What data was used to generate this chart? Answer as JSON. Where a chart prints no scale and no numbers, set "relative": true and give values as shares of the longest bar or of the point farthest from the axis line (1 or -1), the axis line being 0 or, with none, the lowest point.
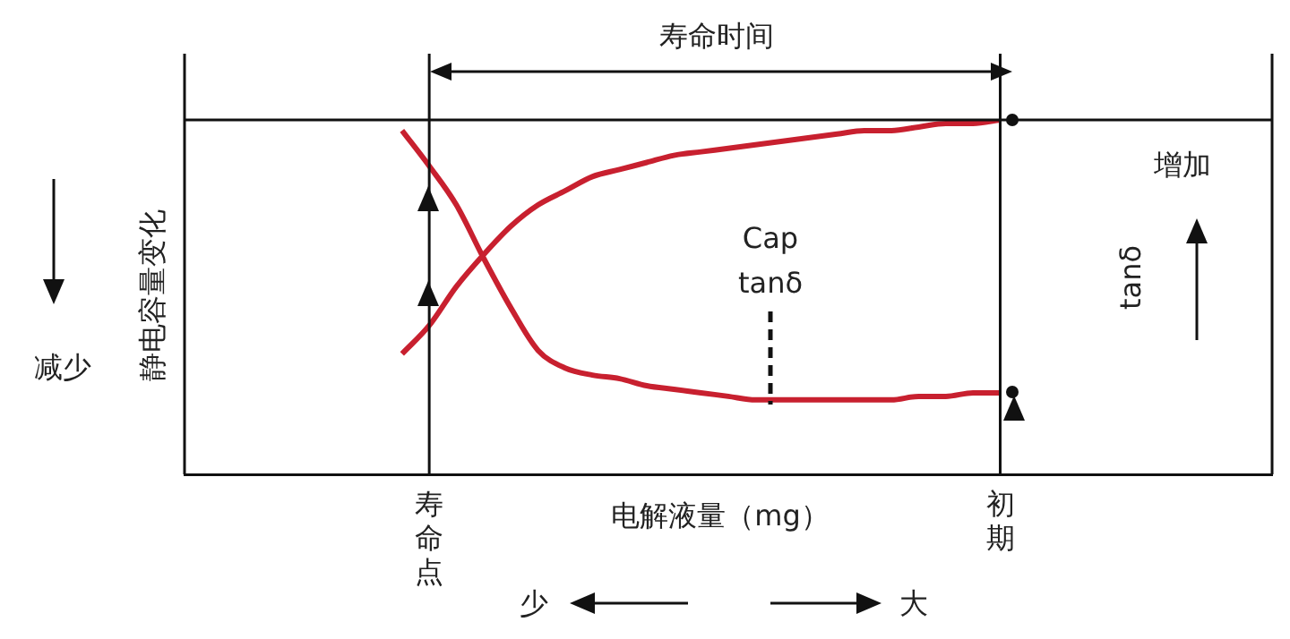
{
  "chart_data": {
    "type": "line",
    "relative": true,
    "xlabel": "电解液量（mg）",
    "ylabel": "静电容量变化",
    "y2label": "tanδ",
    "categories": [
      null,
      null,
      null,
      null,
      null,
      null,
      null,
      null,
      null,
      "寿命点",
      null,
      null,
      null,
      null,
      null,
      null,
      null,
      null,
      null,
      null,
      null,
      null,
      null,
      null,
      null,
      null,
      null,
      null,
      null,
      null,
      "初期",
      null,
      null,
      null,
      null,
      null,
      null,
      null,
      null,
      null,
      null
    ],
    "series": [
      {
        "color": "#c8202f",
        "values": [
          null,
          null,
          null,
          null,
          null,
          null,
          null,
          null,
          0.34,
          0.42,
          0.53,
          0.62,
          0.7,
          0.76,
          0.8,
          0.84,
          0.86,
          0.88,
          0.9,
          0.91,
          0.92,
          0.93,
          0.94,
          0.95,
          0.96,
          0.97,
          0.97,
          0.98,
          0.99,
          0.99,
          1.0,
          null,
          null,
          null,
          null,
          null,
          null,
          null,
          null,
          null,
          null
        ]
      },
      {
        "color": "#c8202f",
        "values": [
          null,
          null,
          null,
          null,
          null,
          null,
          null,
          null,
          0.97,
          0.87,
          0.76,
          0.61,
          0.47,
          0.35,
          0.3,
          0.28,
          0.27,
          0.25,
          0.24,
          0.23,
          0.22,
          0.21,
          0.21,
          0.21,
          0.21,
          0.21,
          0.21,
          0.22,
          0.22,
          0.23,
          0.23,
          null,
          null,
          null,
          null,
          null,
          null,
          null,
          null,
          null,
          null
        ]
      }
    ],
    "ref_lines": [
      {
        "axis": "x",
        "value": "寿命点"
      },
      {
        "axis": "x",
        "value": "初期"
      }
    ],
    "annotations": [
      "寿命时间",
      "Cap",
      "tanδ",
      "减少",
      "增加",
      "少",
      "大"
    ],
    "marker": "none",
    "line_style": "solid"
  }
}
